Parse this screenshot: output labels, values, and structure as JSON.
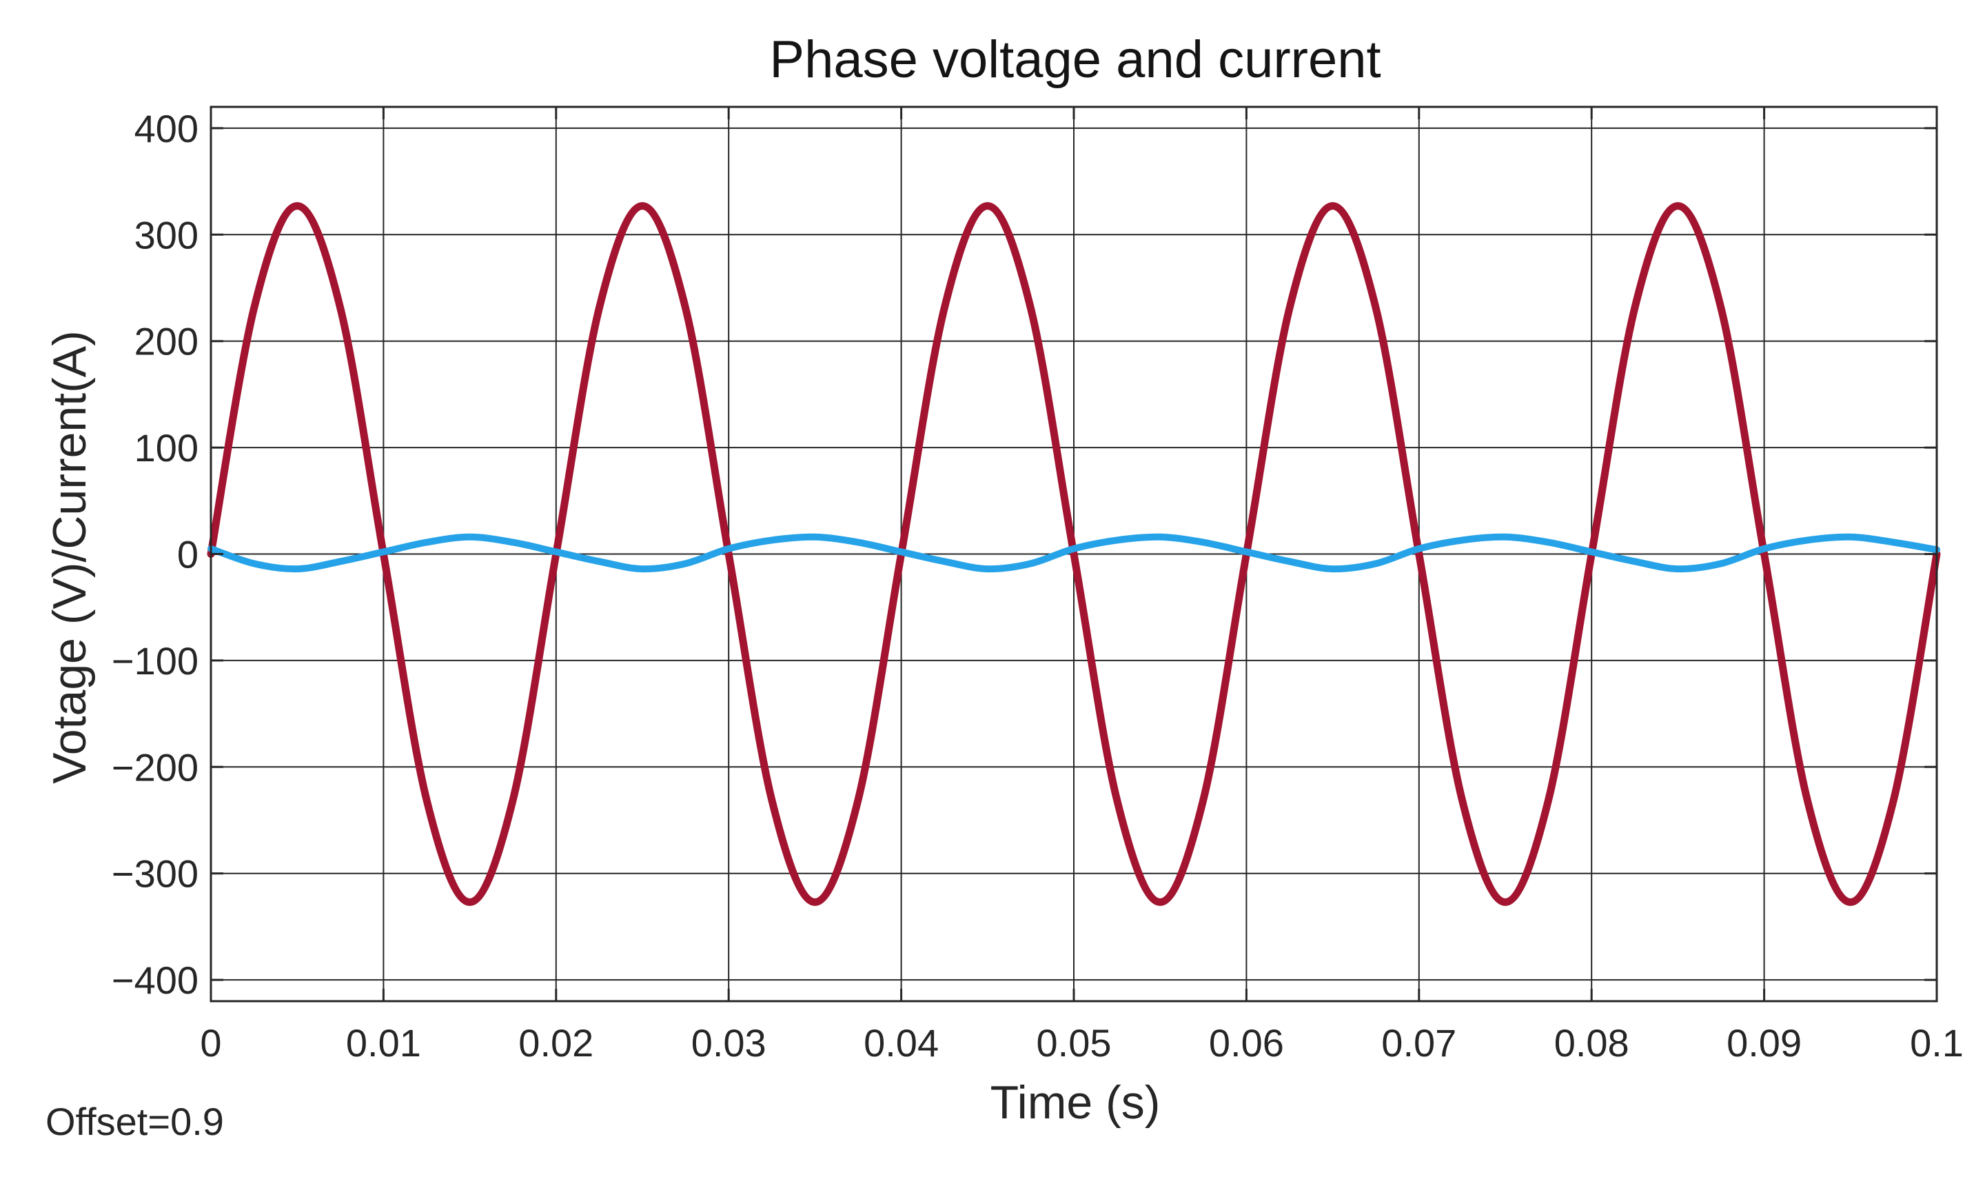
{
  "chart_data": {
    "type": "line",
    "title": "Phase voltage and current",
    "xlabel": "Time (s)",
    "ylabel": "Votage (V)/Current(A)",
    "xlim": [
      0,
      0.1
    ],
    "ylim": [
      -420,
      420
    ],
    "xticks": [
      0,
      0.01,
      0.02,
      0.03,
      0.04,
      0.05,
      0.06,
      0.07,
      0.08,
      0.09,
      0.1
    ],
    "xtick_labels": [
      "0",
      "0.01",
      "0.02",
      "0.03",
      "0.04",
      "0.05",
      "0.06",
      "0.07",
      "0.08",
      "0.09",
      "0.1"
    ],
    "yticks": [
      400,
      300,
      200,
      100,
      0,
      -100,
      -200,
      -300,
      -400
    ],
    "ytick_labels": [
      "400",
      "300",
      "200",
      "100",
      "0",
      "−100",
      "−200",
      "−300",
      "−400"
    ],
    "grid": true,
    "series": [
      {
        "color": "#a2142f",
        "x": [
          0,
          0.0025,
          0.005,
          0.0075,
          0.01,
          0.0125,
          0.015,
          0.0175,
          0.02,
          0.0225,
          0.025,
          0.0275,
          0.03,
          0.0325,
          0.035,
          0.0375,
          0.04,
          0.0425,
          0.045,
          0.0475,
          0.05,
          0.0525,
          0.055,
          0.0575,
          0.06,
          0.0625,
          0.065,
          0.0675,
          0.07,
          0.0725,
          0.075,
          0.0775,
          0.08,
          0.0825,
          0.085,
          0.0875,
          0.09,
          0.0925,
          0.095,
          0.0975,
          0.1
        ],
        "y": [
          0,
          231,
          327,
          231,
          0,
          -231,
          -327,
          -231,
          0,
          231,
          327,
          231,
          0,
          -231,
          -327,
          -231,
          0,
          231,
          327,
          231,
          0,
          -231,
          -327,
          -231,
          0,
          231,
          327,
          231,
          0,
          -231,
          -327,
          -231,
          0,
          231,
          327,
          231,
          0,
          -231,
          -327,
          -231,
          0
        ]
      },
      {
        "color": "#26a3e8",
        "x": [
          0,
          0.0025,
          0.005,
          0.0075,
          0.01,
          0.0125,
          0.015,
          0.0175,
          0.02,
          0.0225,
          0.025,
          0.0275,
          0.03,
          0.0325,
          0.035,
          0.0375,
          0.04,
          0.0425,
          0.045,
          0.0475,
          0.05,
          0.0525,
          0.055,
          0.0575,
          0.06,
          0.0625,
          0.065,
          0.0675,
          0.07,
          0.0725,
          0.075,
          0.0775,
          0.08,
          0.0825,
          0.085,
          0.0875,
          0.09,
          0.0925,
          0.095,
          0.0975,
          0.1
        ],
        "y": [
          5,
          -9,
          -14,
          -7,
          2,
          11,
          16,
          11,
          2,
          -7,
          -14,
          -9,
          5,
          13,
          16,
          11,
          2,
          -7,
          -14,
          -9,
          5,
          13,
          16,
          11,
          2,
          -7,
          -14,
          -9,
          5,
          13,
          16,
          11,
          2,
          -7,
          -14,
          -9,
          5,
          13,
          16,
          11,
          4
        ]
      }
    ]
  },
  "offset_text": "Offset=0.9"
}
